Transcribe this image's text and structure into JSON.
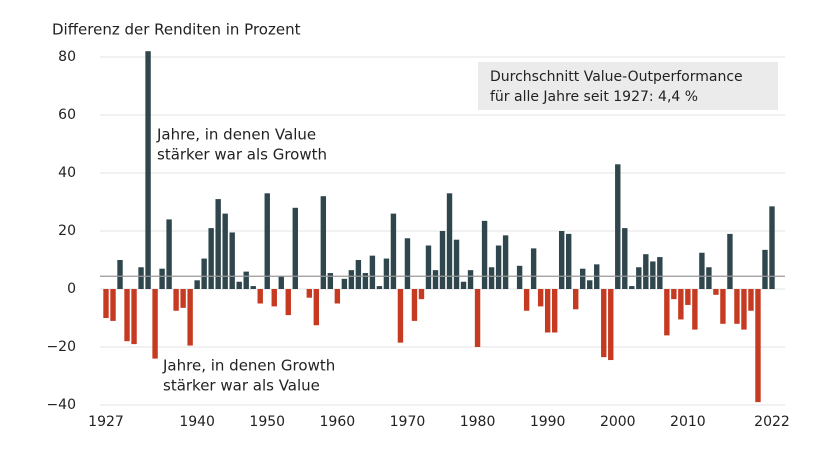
{
  "chart_data": {
    "type": "bar",
    "title": "Differenz der Renditen in Prozent",
    "categories": [
      "1927",
      null,
      null,
      null,
      null,
      null,
      null,
      null,
      null,
      null,
      null,
      null,
      null,
      "1940",
      null,
      null,
      null,
      null,
      null,
      null,
      null,
      null,
      null,
      "1950",
      null,
      null,
      null,
      null,
      null,
      null,
      null,
      null,
      null,
      "1960",
      null,
      null,
      null,
      null,
      null,
      null,
      null,
      null,
      null,
      "1970",
      null,
      null,
      null,
      null,
      null,
      null,
      null,
      null,
      null,
      "1980",
      null,
      null,
      null,
      null,
      null,
      null,
      null,
      null,
      null,
      "1990",
      null,
      null,
      null,
      null,
      null,
      null,
      null,
      null,
      null,
      "2000",
      null,
      null,
      null,
      null,
      null,
      null,
      null,
      null,
      null,
      "2010",
      null,
      null,
      null,
      null,
      null,
      null,
      null,
      null,
      null,
      null,
      null,
      "2022"
    ],
    "values": [
      -10,
      -11,
      10,
      -18,
      -19,
      7.5,
      82,
      -24,
      7,
      24,
      -7.5,
      -6.5,
      -19.5,
      3,
      10.5,
      21,
      31,
      26,
      19.5,
      2.5,
      6,
      1,
      -5,
      33,
      -6,
      4.5,
      -9,
      28,
      0,
      -3,
      -12.5,
      32,
      5.5,
      -5,
      3.5,
      6.5,
      10,
      5.5,
      11.5,
      1,
      10.5,
      26,
      -18.5,
      17.5,
      -11,
      -3.5,
      15,
      6.5,
      20,
      33,
      17,
      2.5,
      6.5,
      -20,
      23.5,
      7.5,
      15,
      18.5,
      0,
      8,
      -7.5,
      14,
      -6,
      -15,
      -15,
      20,
      19,
      -7,
      7,
      3,
      8.5,
      -23.5,
      -24.5,
      43,
      21,
      1,
      7.5,
      12,
      9.5,
      11,
      -16,
      -3.5,
      -10.5,
      -5.5,
      -14,
      12.5,
      7.5,
      -2,
      -12,
      19,
      -12,
      -14,
      -7.5,
      -39,
      13.5,
      28.5
    ],
    "positive_color": "#2f464d",
    "negative_color": "#c73a22",
    "ylim": [
      -40,
      80
    ],
    "yticks": [
      {
        "value": -40,
        "label": "−40"
      },
      {
        "value": -20,
        "label": "−20"
      },
      0,
      20,
      40,
      60,
      80
    ],
    "grid": true,
    "reference_line": {
      "value": 4.4,
      "color": "#999999"
    },
    "annotations": {
      "average": [
        "Durchschnitt Value-Outperformance",
        "für alle Jahre seit 1927: 4,4 %"
      ],
      "positive": [
        "Jahre, in denen Value",
        "stärker war als Growth"
      ],
      "negative": [
        "Jahre, in denen Growth",
        "stärker war als Value"
      ]
    }
  }
}
